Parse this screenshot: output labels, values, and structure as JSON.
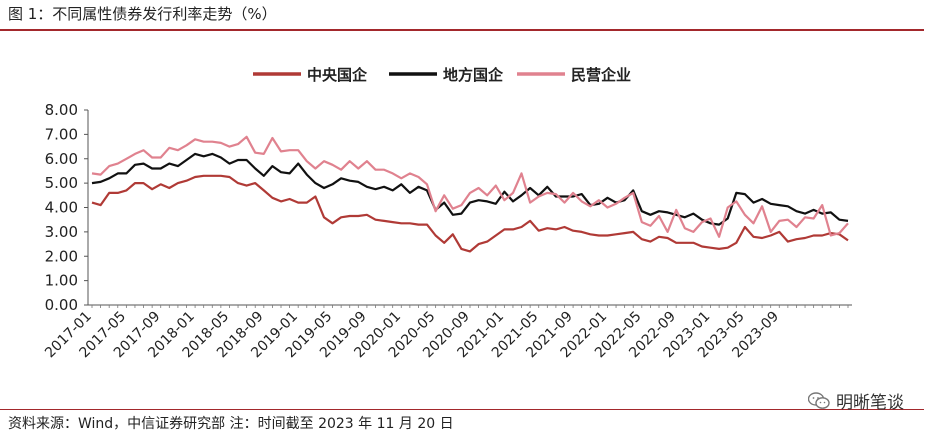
{
  "figure": {
    "title": "图 1：不同属性债券发行利率走势（%）",
    "source": "资料来源：Wind，中信证券研究部  注：时间截至 2023 年 11 月 20 日",
    "watermark": "明晰笔谈"
  },
  "chart_data": {
    "type": "line",
    "title": "",
    "xlabel": "",
    "ylabel": "",
    "ylim": [
      0,
      8
    ],
    "yticks": [
      "0.00",
      "1.00",
      "2.00",
      "3.00",
      "4.00",
      "5.00",
      "6.00",
      "7.00",
      "8.00"
    ],
    "xticks": [
      "2017-01",
      "2017-05",
      "2017-09",
      "2018-01",
      "2018-05",
      "2018-09",
      "2019-01",
      "2019-05",
      "2019-09",
      "2020-01",
      "2020-05",
      "2020-09",
      "2021-01",
      "2021-05",
      "2021-09",
      "2022-01",
      "2022-05",
      "2022-09",
      "2023-01",
      "2023-05",
      "2023-09"
    ],
    "grid": false,
    "legend": "top-center",
    "x_start": "2017-01",
    "series": [
      {
        "name": "中央国企",
        "color": "#b03a36",
        "values": [
          4.2,
          4.1,
          4.6,
          4.6,
          4.7,
          5.0,
          5.0,
          4.75,
          4.95,
          4.8,
          5.0,
          5.1,
          5.25,
          5.3,
          5.3,
          5.3,
          5.25,
          5.0,
          4.9,
          5.0,
          4.7,
          4.4,
          4.25,
          4.35,
          4.2,
          4.2,
          4.45,
          3.6,
          3.35,
          3.6,
          3.65,
          3.65,
          3.7,
          3.5,
          3.45,
          3.4,
          3.35,
          3.35,
          3.3,
          3.3,
          2.85,
          2.55,
          2.9,
          2.3,
          2.2,
          2.5,
          2.6,
          2.85,
          3.1,
          3.1,
          3.2,
          3.45,
          3.05,
          3.15,
          3.1,
          3.2,
          3.05,
          3.0,
          2.9,
          2.85,
          2.85,
          2.9,
          2.95,
          3.0,
          2.7,
          2.6,
          2.8,
          2.75,
          2.55,
          2.55,
          2.55,
          2.4,
          2.35,
          2.3,
          2.35,
          2.55,
          3.2,
          2.8,
          2.75,
          2.85,
          3.0,
          2.6,
          2.7,
          2.75,
          2.85,
          2.85,
          2.95,
          2.9,
          2.65
        ]
      },
      {
        "name": "地方国企",
        "color": "#111111",
        "values": [
          5.0,
          5.05,
          5.2,
          5.4,
          5.4,
          5.75,
          5.8,
          5.6,
          5.6,
          5.8,
          5.7,
          5.95,
          6.2,
          6.1,
          6.2,
          6.05,
          5.8,
          5.95,
          5.95,
          5.6,
          5.3,
          5.7,
          5.45,
          5.4,
          5.8,
          5.35,
          5.0,
          4.8,
          4.95,
          5.2,
          5.1,
          5.05,
          4.85,
          4.75,
          4.85,
          4.7,
          4.95,
          4.6,
          4.85,
          4.7,
          3.9,
          4.2,
          3.7,
          3.75,
          4.2,
          4.3,
          4.25,
          4.15,
          4.65,
          4.25,
          4.5,
          4.8,
          4.5,
          4.85,
          4.45,
          4.45,
          4.45,
          4.55,
          4.1,
          4.15,
          4.4,
          4.2,
          4.3,
          4.7,
          3.85,
          3.7,
          3.85,
          3.8,
          3.7,
          3.6,
          3.75,
          3.5,
          3.35,
          3.3,
          3.55,
          4.6,
          4.55,
          4.2,
          4.35,
          4.15,
          4.1,
          4.05,
          3.85,
          3.75,
          3.9,
          3.75,
          3.8,
          3.5,
          3.45
        ]
      },
      {
        "name": "民营企业",
        "color": "#e0828f",
        "values": [
          5.4,
          5.35,
          5.7,
          5.8,
          6.0,
          6.2,
          6.35,
          6.05,
          6.05,
          6.45,
          6.35,
          6.55,
          6.8,
          6.7,
          6.7,
          6.65,
          6.5,
          6.6,
          6.9,
          6.25,
          6.2,
          6.85,
          6.3,
          6.35,
          6.35,
          5.9,
          5.6,
          5.9,
          5.75,
          5.55,
          5.9,
          5.6,
          5.9,
          5.55,
          5.55,
          5.4,
          5.2,
          5.4,
          5.25,
          4.95,
          3.85,
          4.5,
          3.95,
          4.1,
          4.6,
          4.8,
          4.5,
          4.9,
          4.3,
          4.6,
          5.4,
          4.2,
          4.45,
          4.6,
          4.55,
          4.2,
          4.6,
          4.25,
          4.05,
          4.3,
          4.0,
          4.15,
          4.4,
          4.6,
          3.4,
          3.25,
          3.65,
          3.0,
          3.9,
          3.15,
          3.0,
          3.4,
          3.55,
          2.8,
          4.0,
          4.25,
          3.7,
          3.35,
          4.05,
          3.0,
          3.45,
          3.5,
          3.2,
          3.6,
          3.55,
          4.1,
          2.85,
          2.95,
          3.35
        ]
      }
    ]
  }
}
